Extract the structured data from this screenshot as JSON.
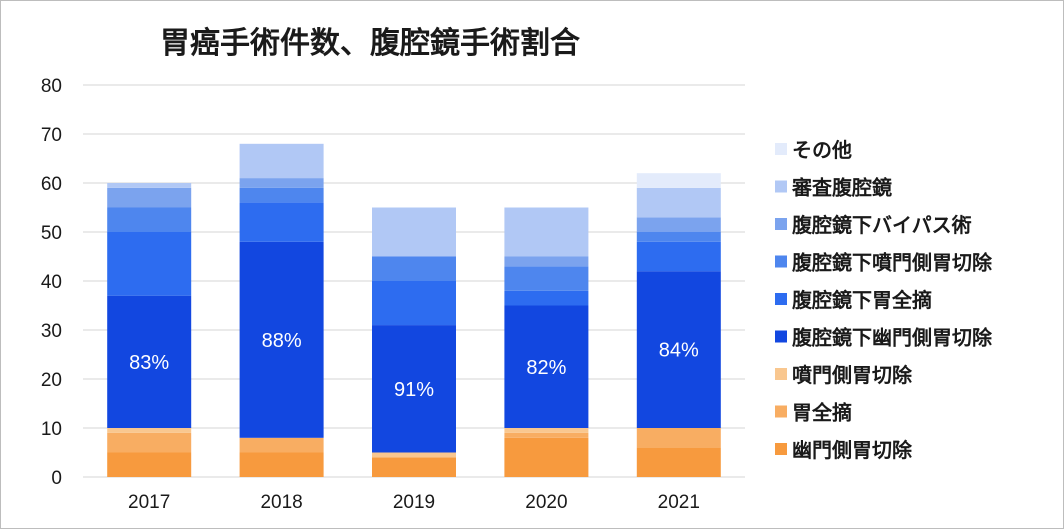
{
  "chart_data": {
    "type": "bar",
    "stacked": true,
    "title": "胃癌手術件数、腹腔鏡手術割合",
    "xlabel": "",
    "ylabel": "",
    "ylim": [
      0,
      80
    ],
    "yticks": [
      0,
      10,
      20,
      30,
      40,
      50,
      60,
      70,
      80
    ],
    "grid": true,
    "legend_position": "right",
    "categories": [
      "2017",
      "2018",
      "2019",
      "2020",
      "2021"
    ],
    "series": [
      {
        "name": "幽門側胃切除",
        "color": "#f79a3e",
        "values": [
          5,
          5,
          4,
          8,
          6
        ]
      },
      {
        "name": "胃全摘",
        "color": "#f8ad62",
        "values": [
          4,
          3,
          0,
          1,
          4
        ]
      },
      {
        "name": "噴門側胃切除",
        "color": "#f9c78f",
        "values": [
          1,
          0,
          1,
          1,
          0
        ]
      },
      {
        "name": "腹腔鏡下幽門側胃切除",
        "color": "#1247e0",
        "values": [
          27,
          40,
          26,
          25,
          32
        ]
      },
      {
        "name": "腹腔鏡下胃全摘",
        "color": "#2d6cf0",
        "values": [
          13,
          8,
          9,
          3,
          6
        ]
      },
      {
        "name": "腹腔鏡下噴門側胃切除",
        "color": "#4e86ee",
        "values": [
          5,
          3,
          5,
          5,
          2
        ]
      },
      {
        "name": "腹腔鏡下バイパス術",
        "color": "#7ba3ee",
        "values": [
          4,
          2,
          0,
          2,
          3
        ]
      },
      {
        "name": "審査腹腔鏡",
        "color": "#b1c8f5",
        "values": [
          1,
          7,
          10,
          10,
          6
        ]
      },
      {
        "name": "その他",
        "color": "#e3ebfb",
        "values": [
          0,
          0,
          0,
          0,
          3
        ]
      }
    ],
    "annotations": [
      "83%",
      "88%",
      "91%",
      "82%",
      "84%"
    ]
  }
}
